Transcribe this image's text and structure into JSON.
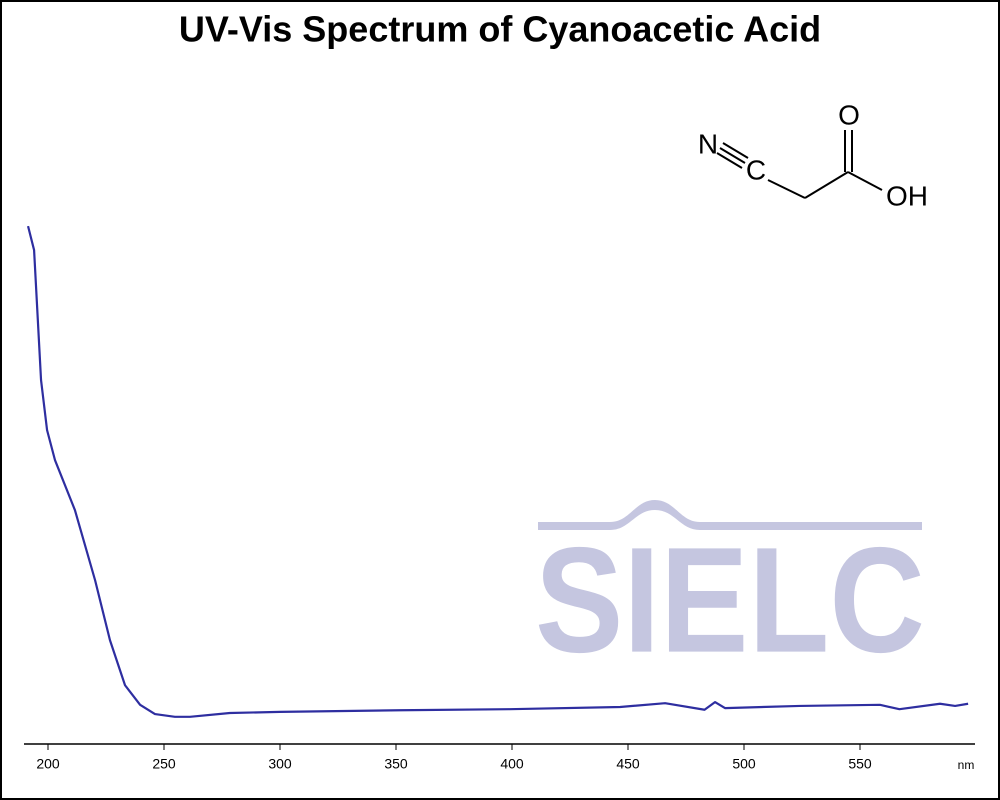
{
  "chart_data": {
    "type": "line",
    "title": "UV-Vis Spectrum of Cyanoacetic Acid",
    "x_label": "nm",
    "annotations": [
      "N",
      "C",
      "O",
      "OH"
    ],
    "watermark": "SIELC",
    "xlim": [
      190,
      600
    ],
    "ylim": [
      0,
      1
    ],
    "xticks": [
      200,
      250,
      300,
      350,
      400,
      450,
      500,
      550
    ],
    "series": [
      {
        "color": "#2e2ea0",
        "x": [
          191.4,
          194,
          197,
          199.6,
          203,
          211.6,
          220.3,
          226.7,
          233.2,
          239.7,
          246.1,
          254.7,
          261.2,
          278.4,
          300,
          351.7,
          399,
          446.6,
          466,
          483,
          487.5,
          491.8,
          524,
          558.6,
          567,
          584.5,
          591,
          596.6
        ],
        "values": [
          0.952,
          0.908,
          0.669,
          0.577,
          0.522,
          0.43,
          0.301,
          0.191,
          0.108,
          0.072,
          0.055,
          0.05,
          0.05,
          0.057,
          0.059,
          0.062,
          0.064,
          0.068,
          0.075,
          0.063,
          0.077,
          0.066,
          0.07,
          0.072,
          0.064,
          0.074,
          0.07,
          0.074
        ]
      }
    ]
  }
}
